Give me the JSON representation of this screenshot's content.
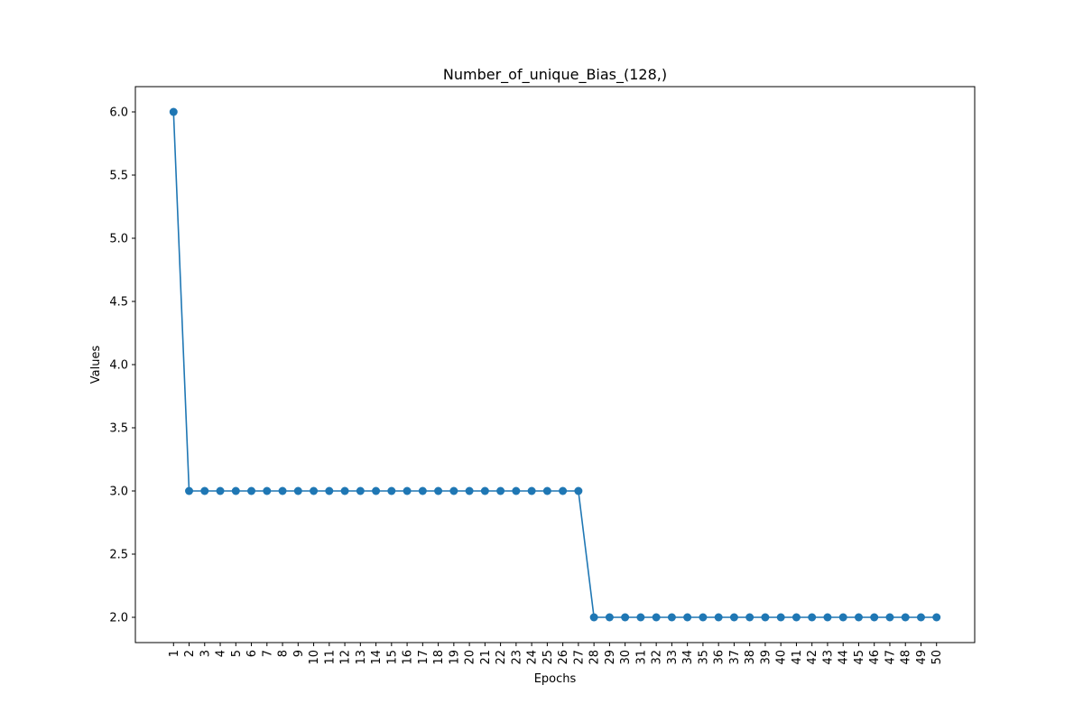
{
  "chart_data": {
    "type": "line",
    "title": "Number_of_unique_Bias_(128,)",
    "xlabel": "Epochs",
    "ylabel": "Values",
    "x": [
      1,
      2,
      3,
      4,
      5,
      6,
      7,
      8,
      9,
      10,
      11,
      12,
      13,
      14,
      15,
      16,
      17,
      18,
      19,
      20,
      21,
      22,
      23,
      24,
      25,
      26,
      27,
      28,
      29,
      30,
      31,
      32,
      33,
      34,
      35,
      36,
      37,
      38,
      39,
      40,
      41,
      42,
      43,
      44,
      45,
      46,
      47,
      48,
      49,
      50
    ],
    "series": [
      {
        "values": [
          6,
          3,
          3,
          3,
          3,
          3,
          3,
          3,
          3,
          3,
          3,
          3,
          3,
          3,
          3,
          3,
          3,
          3,
          3,
          3,
          3,
          3,
          3,
          3,
          3,
          3,
          3,
          2,
          2,
          2,
          2,
          2,
          2,
          2,
          2,
          2,
          2,
          2,
          2,
          2,
          2,
          2,
          2,
          2,
          2,
          2,
          2,
          2,
          2,
          2
        ],
        "color": "#1f77b4",
        "marker": "circle"
      }
    ],
    "x_ticks": [
      "1",
      "2",
      "3",
      "4",
      "5",
      "6",
      "7",
      "8",
      "9",
      "10",
      "11",
      "12",
      "13",
      "14",
      "15",
      "16",
      "17",
      "18",
      "19",
      "20",
      "21",
      "22",
      "23",
      "24",
      "25",
      "26",
      "27",
      "28",
      "29",
      "30",
      "31",
      "32",
      "33",
      "34",
      "35",
      "36",
      "37",
      "38",
      "39",
      "40",
      "41",
      "42",
      "43",
      "44",
      "45",
      "46",
      "47",
      "48",
      "49",
      "50"
    ],
    "x_tick_rotation": "vertical",
    "y_ticks": [
      "2.0",
      "2.5",
      "3.0",
      "3.5",
      "4.0",
      "4.5",
      "5.0",
      "5.5",
      "6.0"
    ],
    "xlim": [
      -1.45,
      52.45
    ],
    "ylim": [
      1.8,
      6.2
    ],
    "grid": false,
    "legend": "none"
  }
}
